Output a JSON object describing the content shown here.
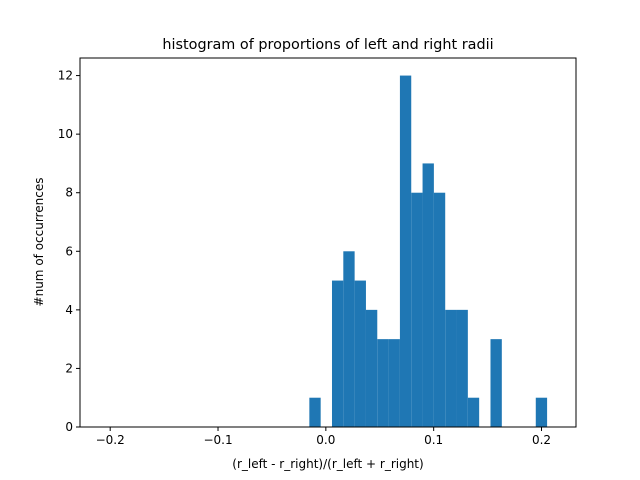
{
  "chart_data": {
    "type": "bar",
    "subtype": "histogram",
    "title": "histogram of proportions of left and right radii",
    "xlabel": "(r_left - r_right)/(r_left + r_right)",
    "ylabel": "#num of occurrences",
    "xlim": [
      -0.228,
      0.232
    ],
    "ylim": [
      0,
      12.6
    ],
    "x_ticks": [
      -0.2,
      -0.1,
      0.0,
      0.1,
      0.2
    ],
    "x_tick_labels": [
      "−0.2",
      "−0.1",
      "0.0",
      "0.1",
      "0.2"
    ],
    "y_ticks": [
      0,
      2,
      4,
      6,
      8,
      10,
      12
    ],
    "y_tick_labels": [
      "0",
      "2",
      "4",
      "6",
      "8",
      "10",
      "12"
    ],
    "bin_width": 0.0105,
    "bins": [
      {
        "x0": -0.0153,
        "x1": -0.0048,
        "count": 1
      },
      {
        "x0": 0.0057,
        "x1": 0.0162,
        "count": 5
      },
      {
        "x0": 0.0162,
        "x1": 0.0267,
        "count": 6
      },
      {
        "x0": 0.0267,
        "x1": 0.0372,
        "count": 5
      },
      {
        "x0": 0.0372,
        "x1": 0.0477,
        "count": 4
      },
      {
        "x0": 0.0477,
        "x1": 0.0582,
        "count": 3
      },
      {
        "x0": 0.0582,
        "x1": 0.0687,
        "count": 3
      },
      {
        "x0": 0.0687,
        "x1": 0.0792,
        "count": 12
      },
      {
        "x0": 0.0792,
        "x1": 0.0897,
        "count": 8
      },
      {
        "x0": 0.0897,
        "x1": 0.1002,
        "count": 9
      },
      {
        "x0": 0.1002,
        "x1": 0.1107,
        "count": 8
      },
      {
        "x0": 0.1107,
        "x1": 0.1212,
        "count": 4
      },
      {
        "x0": 0.1212,
        "x1": 0.1317,
        "count": 4
      },
      {
        "x0": 0.1317,
        "x1": 0.1422,
        "count": 1
      },
      {
        "x0": 0.1527,
        "x1": 0.1632,
        "count": 3
      },
      {
        "x0": 0.1947,
        "x1": 0.2052,
        "count": 1
      }
    ],
    "grid": false,
    "legend": "none",
    "bar_color": "#1f77b4"
  }
}
